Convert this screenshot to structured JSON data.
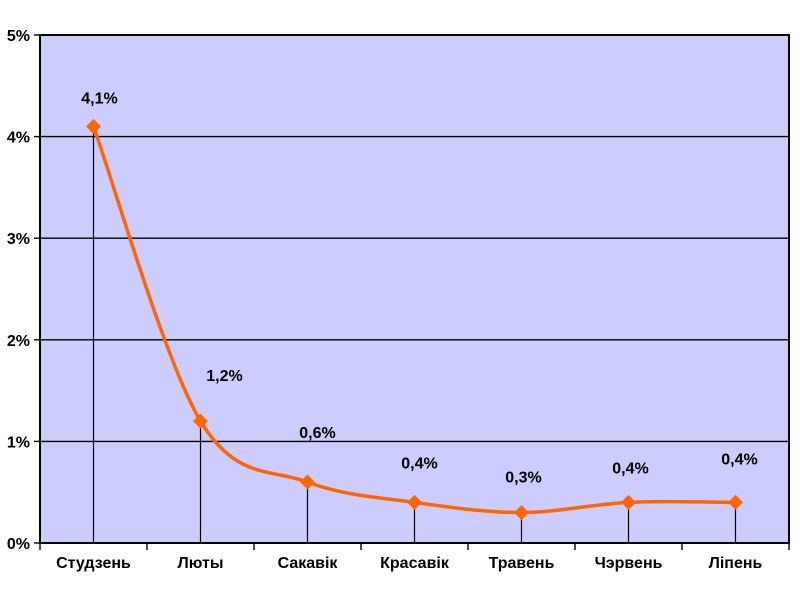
{
  "chart_data": {
    "type": "line",
    "title": "",
    "xlabel": "",
    "ylabel": "",
    "categories": [
      "Студзень",
      "Люты",
      "Сакавік",
      "Красавік",
      "Травень",
      "Чэрвень",
      "Ліпень"
    ],
    "series": [
      {
        "name": "series-1",
        "values": [
          4.1,
          1.2,
          0.6,
          0.4,
          0.3,
          0.4,
          0.4
        ],
        "data_labels": [
          "4,1%",
          "1,2%",
          "0,6%",
          "0,4%",
          "0,3%",
          "0,4%",
          "0,4%"
        ]
      }
    ],
    "y_axis": {
      "min": 0,
      "max": 5,
      "tick_step": 1,
      "tick_labels": [
        "0%",
        "1%",
        "2%",
        "3%",
        "4%",
        "5%"
      ]
    },
    "grid": "horizontal",
    "legend": "none",
    "marker": "diamond",
    "line_smoothed": true,
    "drop_lines": true,
    "colors": {
      "line": "#FF6600",
      "marker": "#FF6600",
      "plot_background": "#CCCCFF",
      "gridline": "#000000",
      "axis": "#000000",
      "text": "#000000",
      "page_background": "#FFFFFF"
    }
  }
}
